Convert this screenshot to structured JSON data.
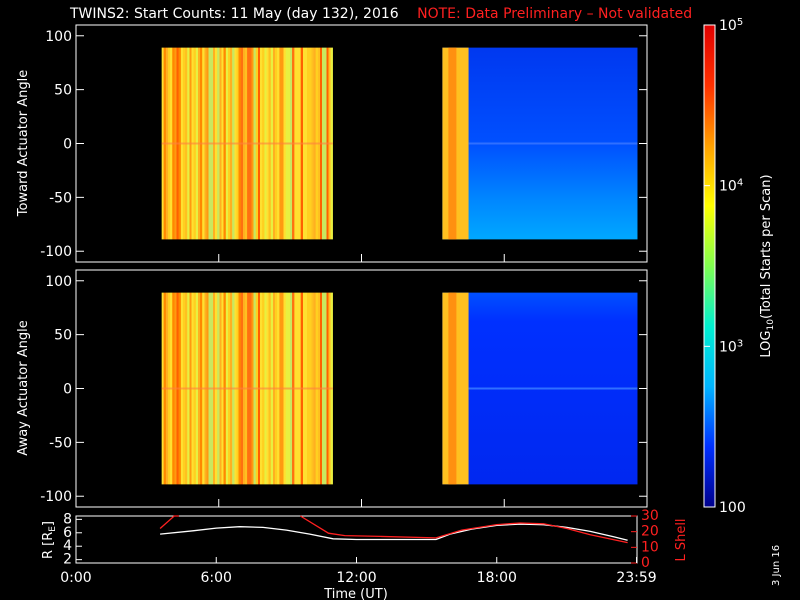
{
  "header": {
    "title": "TWINS2: Start Counts: 11 May (day 132), 2016",
    "note": "NOTE: Data Preliminary – Not validated"
  },
  "footer": {
    "date_stamp": "3 Jun 16"
  },
  "chart_data": [
    {
      "type": "heatmap",
      "ylabel": "Toward Actuator Angle",
      "ylim": [
        -110,
        110
      ],
      "yticks": [
        -100,
        -50,
        0,
        50,
        100
      ],
      "xlim": [
        0,
        24
      ],
      "data_blocks": [
        {
          "x_start_hours": 3.6,
          "x_end_hours": 10.8,
          "y_range": [
            -89,
            89
          ],
          "dominant": "yellow-orange (~1e4-1e5)"
        },
        {
          "x_start_hours": 15.4,
          "x_end_hours": 23.6,
          "y_range": [
            -89,
            89
          ],
          "dominant": "blue (~1e2-1e3), yellow-orange 15.4-16.5"
        }
      ]
    },
    {
      "type": "heatmap",
      "ylabel": "Away Actuator Angle",
      "ylim": [
        -110,
        110
      ],
      "yticks": [
        -100,
        -50,
        0,
        50,
        100
      ],
      "xlim": [
        0,
        24
      ],
      "data_blocks": [
        {
          "x_start_hours": 3.6,
          "x_end_hours": 10.8,
          "y_range": [
            -89,
            89
          ],
          "dominant": "yellow-orange (~1e4-1e5)"
        },
        {
          "x_start_hours": 15.4,
          "x_end_hours": 23.6,
          "y_range": [
            -89,
            89
          ],
          "dominant": "blue (~1e2-1e3), yellow-orange 15.4-16.5"
        }
      ]
    },
    {
      "type": "line",
      "xlabel": "Time (UT)",
      "xticks": [
        "0:00",
        "6:00",
        "12:00",
        "18:00",
        "23:59"
      ],
      "xtick_hours": [
        0,
        6,
        12,
        18,
        23.98
      ],
      "left_axis": {
        "label": "R [Rₑ]",
        "label_main": "R [R",
        "label_sub": "E",
        "label_end": "]",
        "ylim": [
          1.5,
          8.5
        ],
        "ticks": [
          2,
          4,
          6,
          8
        ]
      },
      "right_axis": {
        "label": "L Shell",
        "ylim": [
          0,
          30
        ],
        "ticks": [
          0,
          10,
          20,
          30
        ],
        "color": "#ff2020"
      },
      "series": [
        {
          "axis": "left",
          "color": "#ffffff",
          "x": [
            3.6,
            5,
            6,
            7,
            8,
            9,
            10,
            11,
            12,
            13,
            14,
            15.4,
            16,
            17,
            18,
            19,
            20,
            21,
            22,
            23,
            23.6
          ],
          "y": [
            5.8,
            6.3,
            6.7,
            6.9,
            6.8,
            6.4,
            5.8,
            5.1,
            5.0,
            5.0,
            5.0,
            5.0,
            5.8,
            6.6,
            7.1,
            7.3,
            7.2,
            6.8,
            6.2,
            5.4,
            4.9
          ]
        },
        {
          "axis": "right",
          "color": "#ff2020",
          "x": [
            3.6,
            4.2,
            4.4
          ],
          "y": [
            22,
            30,
            31
          ]
        },
        {
          "axis": "right",
          "color": "#ff2020",
          "x": [
            9.6,
            10.8,
            11.5,
            13,
            15.4,
            16.5,
            18,
            19,
            20,
            21,
            22,
            23.6
          ],
          "y": [
            31,
            19,
            17.5,
            17,
            16,
            21,
            24.5,
            25.5,
            25,
            22,
            18,
            13
          ]
        }
      ]
    }
  ],
  "colorbar": {
    "label": "LOG10(Total Starts per Scan)",
    "label_pre": "LOG",
    "label_sub": "10",
    "label_post": "(Total Starts per Scan)",
    "scale": "log",
    "range": [
      100,
      100000
    ],
    "tick_values": [
      100,
      1000,
      10000,
      100000
    ],
    "tick_labels": [
      {
        "base": "100",
        "exp": ""
      },
      {
        "base": "10",
        "exp": "3"
      },
      {
        "base": "10",
        "exp": "4"
      },
      {
        "base": "10",
        "exp": "5"
      }
    ],
    "colors": [
      "#00008c",
      "#0030ff",
      "#00b4ff",
      "#00f0d0",
      "#80ff50",
      "#ffff00",
      "#ffa000",
      "#ff3000",
      "#e00000"
    ]
  }
}
